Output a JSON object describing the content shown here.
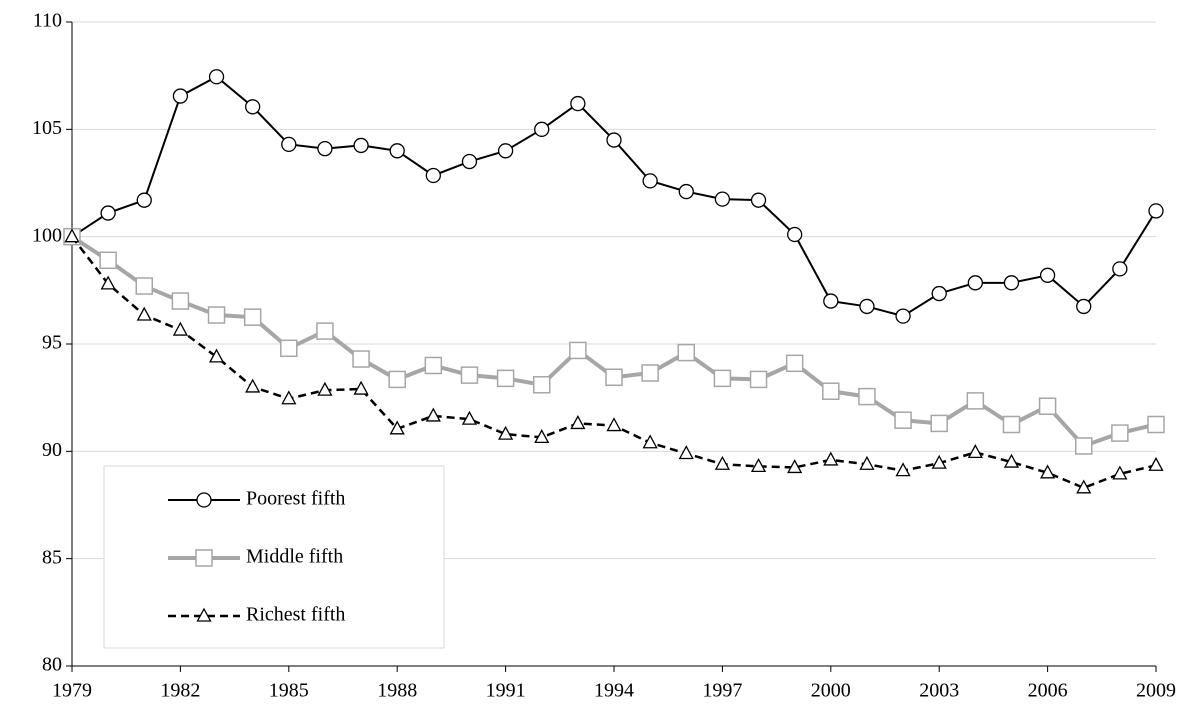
{
  "chart_data": {
    "type": "line",
    "x": [
      1979,
      1980,
      1981,
      1982,
      1983,
      1984,
      1985,
      1986,
      1987,
      1988,
      1989,
      1990,
      1991,
      1992,
      1993,
      1994,
      1995,
      1996,
      1997,
      1998,
      1999,
      2000,
      2001,
      2002,
      2003,
      2004,
      2005,
      2006,
      2007,
      2008,
      2009
    ],
    "series": [
      {
        "name": "Poorest fifth",
        "color": "#000000",
        "marker": "circle",
        "dash": false,
        "values": [
          100,
          101.1,
          101.7,
          106.55,
          107.45,
          106.05,
          104.3,
          104.1,
          104.25,
          104.0,
          102.85,
          103.5,
          104.0,
          105.0,
          106.2,
          104.5,
          102.6,
          102.1,
          101.75,
          101.7,
          100.1,
          97.0,
          96.75,
          96.3,
          97.35,
          97.85,
          97.85,
          98.2,
          96.75,
          98.5,
          101.2
        ]
      },
      {
        "name": "Middle fifth",
        "color": "#a6a6a6",
        "marker": "square",
        "dash": false,
        "values": [
          100,
          98.9,
          97.7,
          97.0,
          96.35,
          96.25,
          94.8,
          95.6,
          94.3,
          93.35,
          94.0,
          93.55,
          93.4,
          93.1,
          94.7,
          93.45,
          93.65,
          94.6,
          93.4,
          93.35,
          94.1,
          92.8,
          92.55,
          91.45,
          91.3,
          92.35,
          91.25,
          92.1,
          90.25,
          90.85,
          91.25
        ]
      },
      {
        "name": "Richest fifth",
        "color": "#000000",
        "marker": "triangle",
        "dash": true,
        "values": [
          100,
          97.8,
          96.35,
          95.65,
          94.4,
          93.0,
          92.45,
          92.85,
          92.9,
          91.05,
          91.65,
          91.5,
          90.8,
          90.65,
          91.3,
          91.2,
          90.4,
          89.9,
          89.4,
          89.3,
          89.25,
          89.6,
          89.4,
          89.1,
          89.45,
          89.95,
          89.5,
          89.0,
          88.3,
          88.95,
          89.35
        ]
      }
    ],
    "xlim": [
      1979,
      2009
    ],
    "xticks": [
      1979,
      1982,
      1985,
      1988,
      1991,
      1994,
      1997,
      2000,
      2003,
      2006,
      2009
    ],
    "ylim": [
      80,
      110
    ],
    "yticks": [
      80,
      85,
      90,
      95,
      100,
      105,
      110
    ],
    "grid": true,
    "legend": "lower left"
  }
}
